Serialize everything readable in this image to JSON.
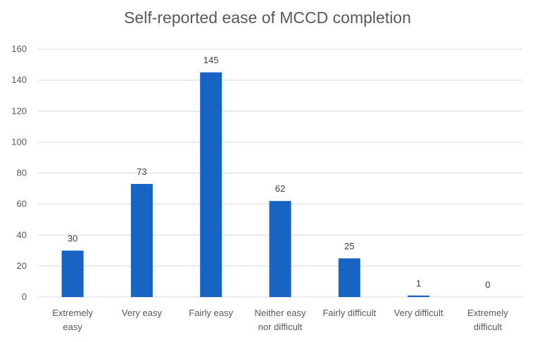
{
  "chart_data": {
    "type": "bar",
    "title": "Self-reported ease of MCCD completion",
    "categories": [
      [
        "Extremely",
        "easy"
      ],
      [
        "Very easy"
      ],
      [
        "Fairly easy"
      ],
      [
        "Neither easy",
        "nor difficult"
      ],
      [
        "Fairly difficult"
      ],
      [
        "Very difficult"
      ],
      [
        "Extremely",
        "difficult"
      ]
    ],
    "values": [
      30,
      73,
      145,
      62,
      25,
      1,
      0
    ],
    "data_labels": [
      "30",
      "73",
      "145",
      "62",
      "25",
      "1",
      "0"
    ],
    "ylim": [
      0,
      160
    ],
    "yticks": [
      "0",
      "20",
      "40",
      "60",
      "80",
      "100",
      "120",
      "140",
      "160"
    ],
    "grid": true,
    "legend": "none",
    "bar_color": "#1764c4",
    "grid_color": "#d9d9d9"
  }
}
